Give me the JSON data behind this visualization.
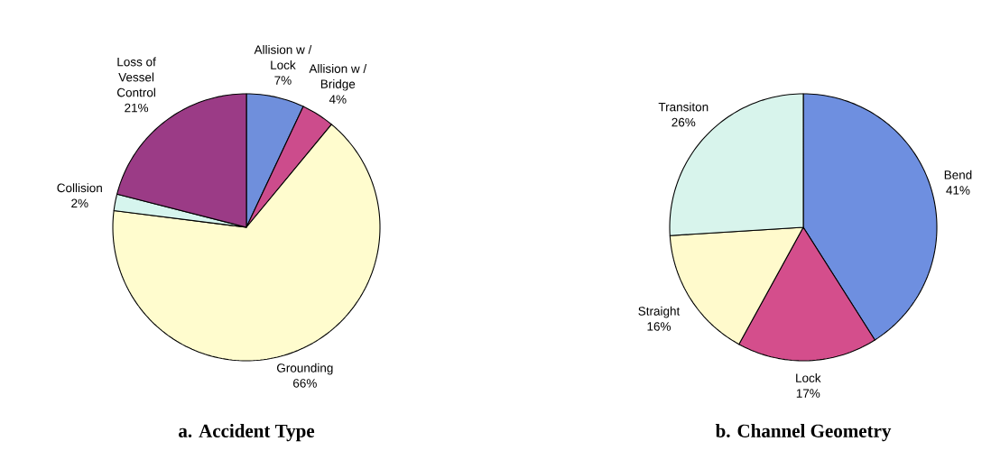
{
  "chart_data": [
    {
      "type": "pie",
      "title": "a. Accident Type",
      "categories": [
        "Allision w / Lock",
        "Allision w / Bridge",
        "Grounding",
        "Collision",
        "Loss of Vessel Control"
      ],
      "values": [
        7,
        4,
        66,
        2,
        21
      ],
      "value_labels": [
        "7%",
        "4%",
        "66%",
        "2%",
        "21%"
      ],
      "colors": [
        "#6f8fdc",
        "#cc4c8c",
        "#fffcce",
        "#d6f5ee",
        "#9b3b86"
      ]
    },
    {
      "type": "pie",
      "title": "b. Channel Geometry",
      "categories": [
        "Bend",
        "Lock",
        "Straight",
        "Transiton"
      ],
      "values": [
        41,
        17,
        16,
        26
      ],
      "value_labels": [
        "41%",
        "17%",
        "16%",
        "26%"
      ],
      "colors": [
        "#6e8fe0",
        "#d44e8c",
        "#fffacc",
        "#d8f4ec"
      ]
    }
  ]
}
